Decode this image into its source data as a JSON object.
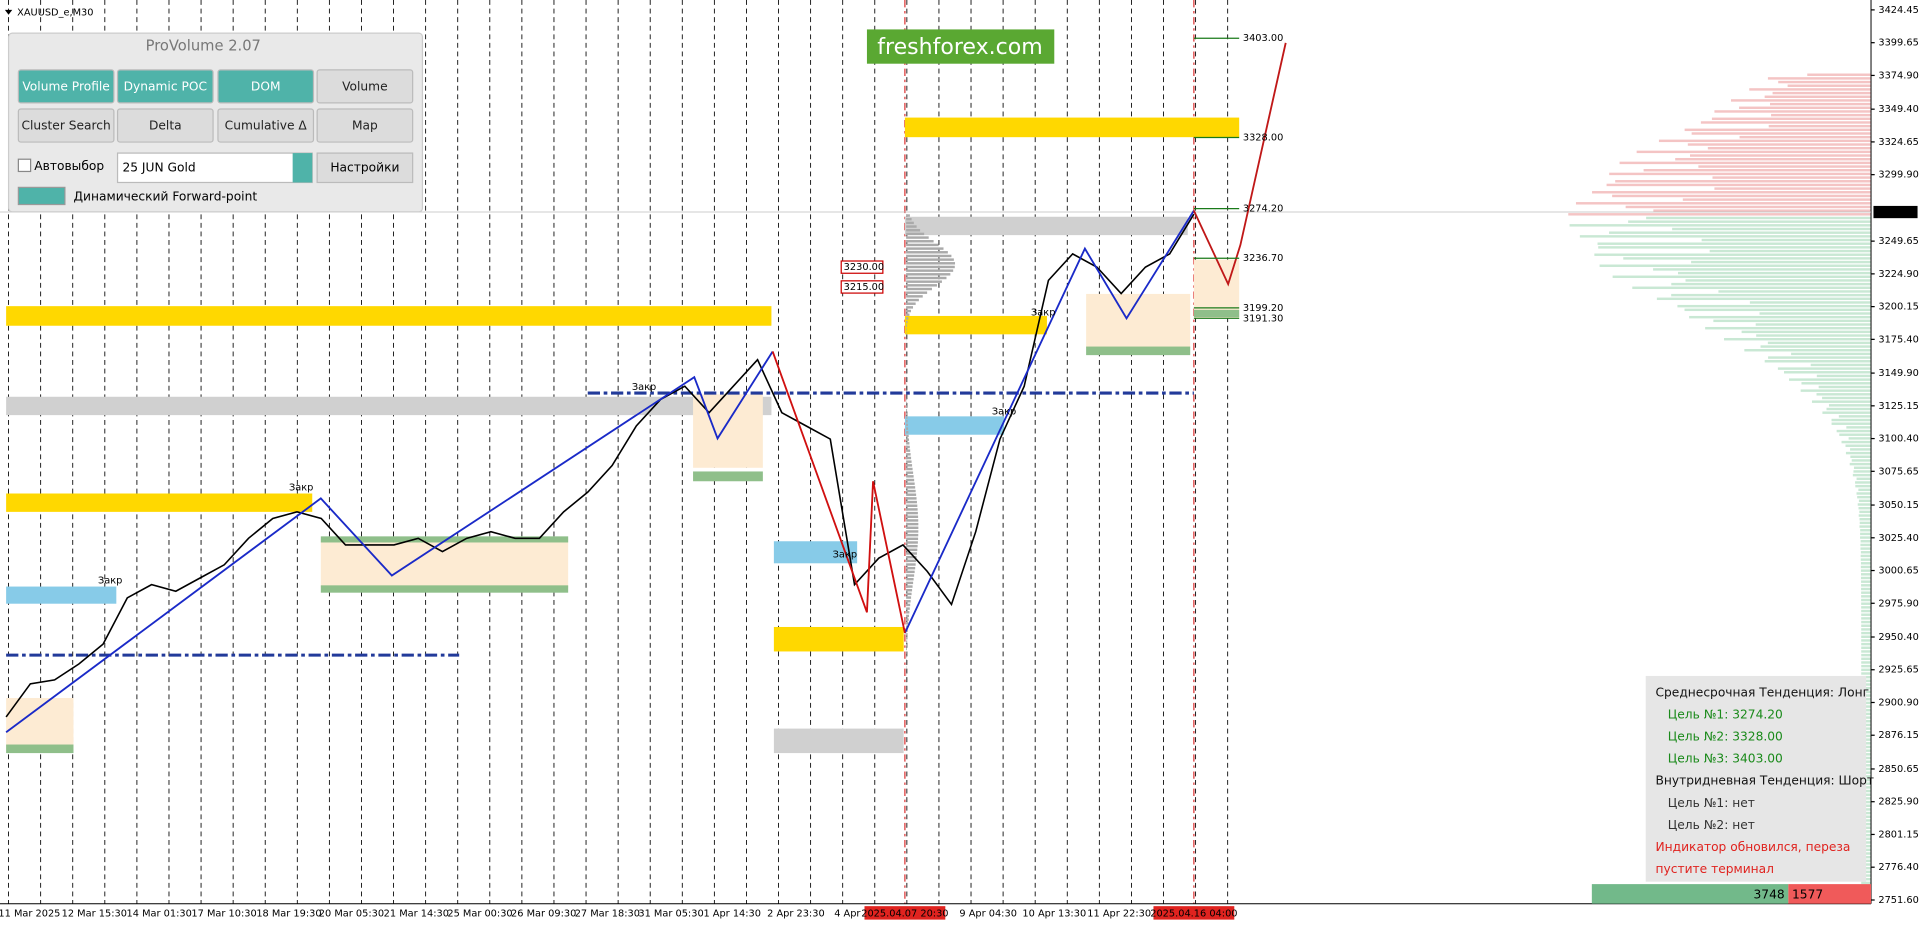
{
  "symbol": "XAUUSD_e,M30",
  "panel": {
    "title": "ProVolume 2.07",
    "buttons": [
      "Volume Profile",
      "Dynamic POC",
      "DOM",
      "Volume",
      "Cluster Search",
      "Delta",
      "Cumulative Δ",
      "Map"
    ],
    "checkbox": "Автовыбор",
    "dropdown": "25 JUN Gold",
    "settings": "Настройки",
    "toggle": "Динамический Forward-point"
  },
  "logo": "freshforex.com",
  "chart": {
    "ylim": [
      2748.8,
      3431.9
    ],
    "yticks": [
      3424.45,
      3399.65,
      {
        "value": 3374.9,
        "label": "3374.90"
      },
      {
        "value": 3349.4,
        "label": "3349.40"
      },
      3324.65,
      {
        "value": 3299.9,
        "label": "3299.90"
      },
      3249.65,
      {
        "value": 3224.9,
        "label": "3224.90"
      },
      3200.15,
      {
        "value": 3175.4,
        "label": "3175.40"
      },
      {
        "value": 3149.9,
        "label": "3149.90"
      },
      3125.15,
      {
        "value": 3100.4,
        "label": "3100.40"
      },
      3075.65,
      3050.15,
      {
        "value": 3025.4,
        "label": "3025.40"
      },
      3000.65,
      {
        "value": 2975.9,
        "label": "2975.90"
      },
      {
        "value": 2950.4,
        "label": "2950.40"
      },
      2925.65,
      {
        "value": 2900.9,
        "label": "2900.90"
      },
      2876.15,
      2850.65,
      {
        "value": 2825.9,
        "label": "2825.90"
      },
      2801.15,
      {
        "value": 2776.4,
        "label": "2776.40"
      },
      {
        "value": 2751.6,
        "label": "2751.60"
      }
    ],
    "current_price": 3271.64,
    "xlabels": [
      "11 Mar 2025",
      "12 Mar 15:30",
      "14 Mar 01:30",
      "17 Mar 10:30",
      "18 Mar 19:30",
      "20 Mar 05:30",
      "21 Mar 14:30",
      "25 Mar 00:30",
      "26 Mar 09:30",
      "27 Mar 18:30",
      "31 Mar 05:30",
      "1 Apr 14:30",
      "2 Apr 23:30",
      "4 Apr",
      "2025.04.07 20:30",
      "9 Apr 04:30",
      "10 Apr 13:30",
      "11 Apr 22:30",
      "2025.04.16 04:00"
    ],
    "price": [
      2890,
      2915,
      2918,
      2930,
      2945,
      2980,
      2990,
      2985,
      2995,
      3005,
      3025,
      3040,
      3045,
      3040,
      3020,
      3020,
      3020,
      3025,
      3015,
      3025,
      3030,
      3025,
      3025,
      3045,
      3060,
      3080,
      3110,
      3130,
      3140,
      3120,
      3140,
      3160,
      3120,
      3110,
      3100,
      2990,
      3010,
      3020,
      3000,
      2975,
      3030,
      3100,
      3140,
      3220,
      3240,
      3230,
      3210,
      3230,
      3240,
      3270
    ],
    "levels": [
      {
        "price": 3403.0,
        "label": "3403.00"
      },
      {
        "price": 3328.0,
        "label": "3328.00"
      },
      {
        "price": 3274.2,
        "label": "3274.20"
      },
      {
        "price": 3236.7,
        "label": "3236.70"
      },
      {
        "price": 3199.2,
        "label": "3199.20"
      },
      {
        "price": 3191.3,
        "label": "3191.30"
      }
    ],
    "boxed_levels": [
      {
        "price": 3230.0,
        "label": "3230.00"
      },
      {
        "price": 3215.0,
        "label": "3215.00"
      }
    ],
    "close_marks": [
      "Закр",
      "Закр",
      "Закр",
      "Закр",
      "Закр",
      "Закр"
    ]
  },
  "info": {
    "lines": [
      "Среднесрочная Тенденция: Лонг",
      "Цель №1: 3274.20",
      "Цель №2: 3328.00",
      "Цель №3: 3403.00",
      "Внутридневная Тенденция: Шорт",
      "Цель №1: нет",
      "Цель №2: нет",
      "Индикатор обновился, переза",
      "пустите терминал"
    ]
  },
  "volume_bar": {
    "buy": 3748,
    "sell": 1577
  }
}
